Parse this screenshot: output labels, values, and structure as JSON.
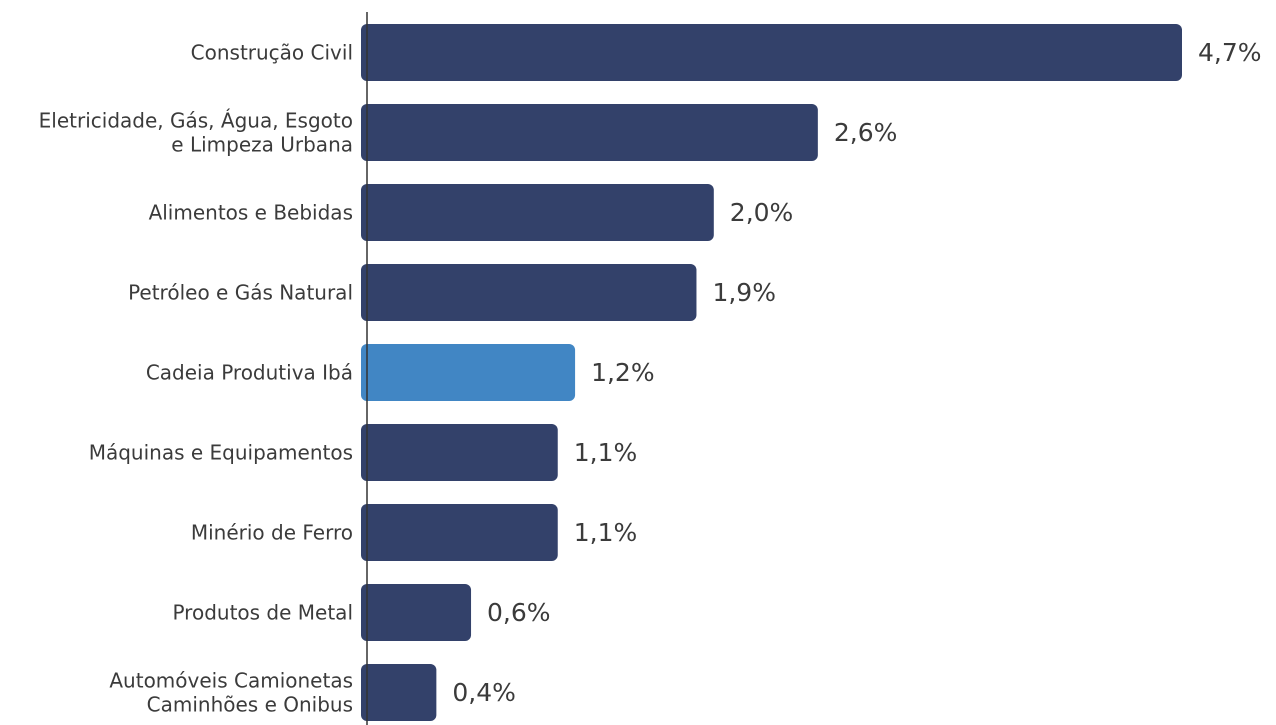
{
  "chart_data": {
    "type": "bar",
    "orientation": "horizontal",
    "categories": [
      [
        "Construção Civil"
      ],
      [
        "Eletricidade, Gás, Água, Esgoto",
        "e Limpeza Urbana"
      ],
      [
        "Alimentos e Bebidas"
      ],
      [
        "Petróleo e Gás Natural"
      ],
      [
        "Cadeia Produtiva Ibá"
      ],
      [
        "Máquinas e Equipamentos"
      ],
      [
        "Minério de Ferro"
      ],
      [
        "Produtos de Metal"
      ],
      [
        "Automóveis Camionetas",
        "Caminhões e Onibus"
      ]
    ],
    "values": [
      4.7,
      2.6,
      2.0,
      1.9,
      1.2,
      1.1,
      1.1,
      0.6,
      0.4
    ],
    "value_labels": [
      "4,7%",
      "2,6%",
      "2,0%",
      "1,9%",
      "1,2%",
      "1,1%",
      "1,1%",
      "0,6%",
      "0,4%"
    ],
    "highlight_index": 4,
    "colors": {
      "bar": "#33416a",
      "highlight": "#4186c4",
      "axis": "#333333",
      "text": "#3b3b3b"
    },
    "xlim": [
      0,
      4.7
    ],
    "grid": false,
    "legend": "none"
  }
}
